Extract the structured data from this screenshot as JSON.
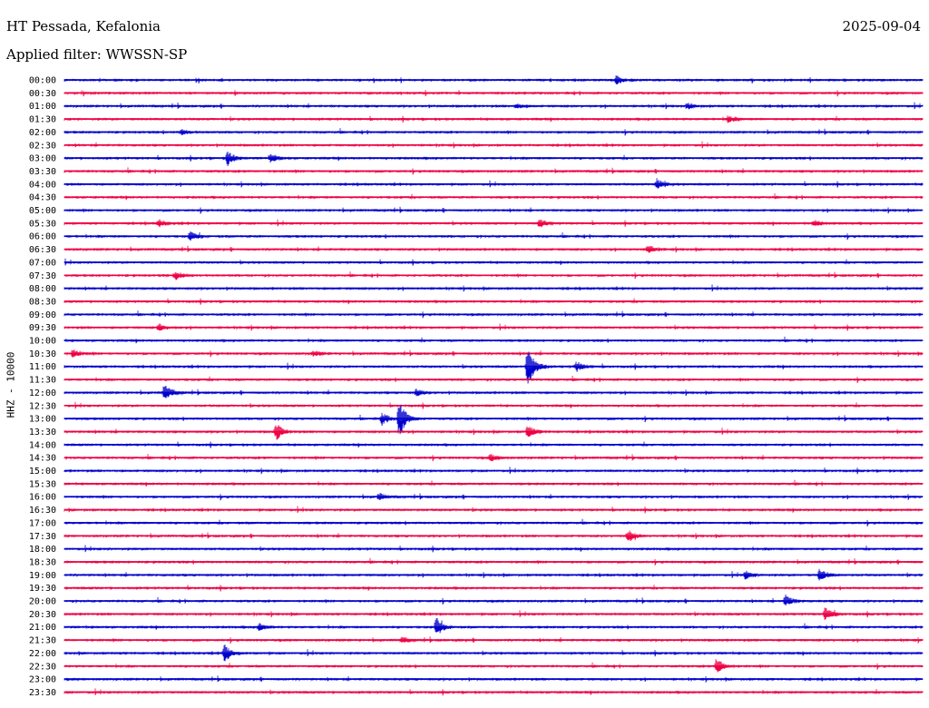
{
  "header": {
    "station": "HT Pessada, Kefalonia",
    "date": "2025-09-04",
    "filter": "Applied filter: WWSSN-SP"
  },
  "chart_data": {
    "type": "line",
    "title": "HT Pessada, Kefalonia",
    "date": "2025-09-04",
    "filter": "WWSSN-SP",
    "ylabel": "HHZ - 10000",
    "trace_colors": [
      "#0000cc",
      "#ee0044"
    ],
    "tick_labels": [
      "00:00",
      "00:30",
      "01:00",
      "01:30",
      "02:00",
      "02:30",
      "03:00",
      "03:30",
      "04:00",
      "04:30",
      "05:00",
      "05:30",
      "06:00",
      "06:30",
      "07:00",
      "07:30",
      "08:00",
      "08:30",
      "09:00",
      "09:30",
      "10:00",
      "10:30",
      "11:00",
      "11:30",
      "12:00",
      "12:30",
      "13:00",
      "13:30",
      "14:00",
      "14:30",
      "15:00",
      "15:30",
      "16:00",
      "16:30",
      "17:00",
      "17:30",
      "18:00",
      "18:30",
      "19:00",
      "19:30",
      "20:00",
      "20:30",
      "21:00",
      "21:30",
      "22:00",
      "22:30",
      "23:00",
      "23:30"
    ],
    "trace_duration_minutes": 30,
    "events": [
      {
        "row": "00:00",
        "minute": 19.3,
        "amp": 5
      },
      {
        "row": "01:00",
        "minute": 15.8,
        "amp": 3
      },
      {
        "row": "01:00",
        "minute": 21.8,
        "amp": 3
      },
      {
        "row": "01:30",
        "minute": 23.2,
        "amp": 4
      },
      {
        "row": "02:00",
        "minute": 4.1,
        "amp": 3
      },
      {
        "row": "03:00",
        "minute": 5.7,
        "amp": 8
      },
      {
        "row": "03:00",
        "minute": 7.2,
        "amp": 5
      },
      {
        "row": "04:00",
        "minute": 20.7,
        "amp": 6
      },
      {
        "row": "05:30",
        "minute": 3.3,
        "amp": 4
      },
      {
        "row": "05:30",
        "minute": 16.6,
        "amp": 5
      },
      {
        "row": "05:30",
        "minute": 26.2,
        "amp": 4
      },
      {
        "row": "06:00",
        "minute": 4.4,
        "amp": 5
      },
      {
        "row": "06:30",
        "minute": 20.4,
        "amp": 5
      },
      {
        "row": "07:30",
        "minute": 3.9,
        "amp": 5
      },
      {
        "row": "09:30",
        "minute": 3.3,
        "amp": 4
      },
      {
        "row": "10:30",
        "minute": 0.3,
        "amp": 5
      },
      {
        "row": "10:30",
        "minute": 8.7,
        "amp": 3
      },
      {
        "row": "11:00",
        "minute": 16.2,
        "amp": 28
      },
      {
        "row": "11:00",
        "minute": 17.9,
        "amp": 6
      },
      {
        "row": "12:00",
        "minute": 3.5,
        "amp": 10
      },
      {
        "row": "12:00",
        "minute": 12.3,
        "amp": 4
      },
      {
        "row": "13:00",
        "minute": 11.7,
        "amp": 22
      },
      {
        "row": "13:00",
        "minute": 11.1,
        "amp": 7
      },
      {
        "row": "13:30",
        "minute": 7.4,
        "amp": 10
      },
      {
        "row": "13:30",
        "minute": 16.2,
        "amp": 8
      },
      {
        "row": "14:30",
        "minute": 14.9,
        "amp": 4
      },
      {
        "row": "16:00",
        "minute": 11.0,
        "amp": 4
      },
      {
        "row": "17:30",
        "minute": 19.7,
        "amp": 7
      },
      {
        "row": "19:00",
        "minute": 23.8,
        "amp": 5
      },
      {
        "row": "19:00",
        "minute": 26.4,
        "amp": 7
      },
      {
        "row": "20:00",
        "minute": 25.2,
        "amp": 7
      },
      {
        "row": "20:30",
        "minute": 26.6,
        "amp": 8
      },
      {
        "row": "21:00",
        "minute": 6.8,
        "amp": 4
      },
      {
        "row": "21:00",
        "minute": 13.0,
        "amp": 11
      },
      {
        "row": "21:30",
        "minute": 11.8,
        "amp": 3
      },
      {
        "row": "22:00",
        "minute": 5.6,
        "amp": 10
      },
      {
        "row": "22:30",
        "minute": 22.8,
        "amp": 10
      }
    ],
    "grid": false,
    "legend": "none"
  }
}
